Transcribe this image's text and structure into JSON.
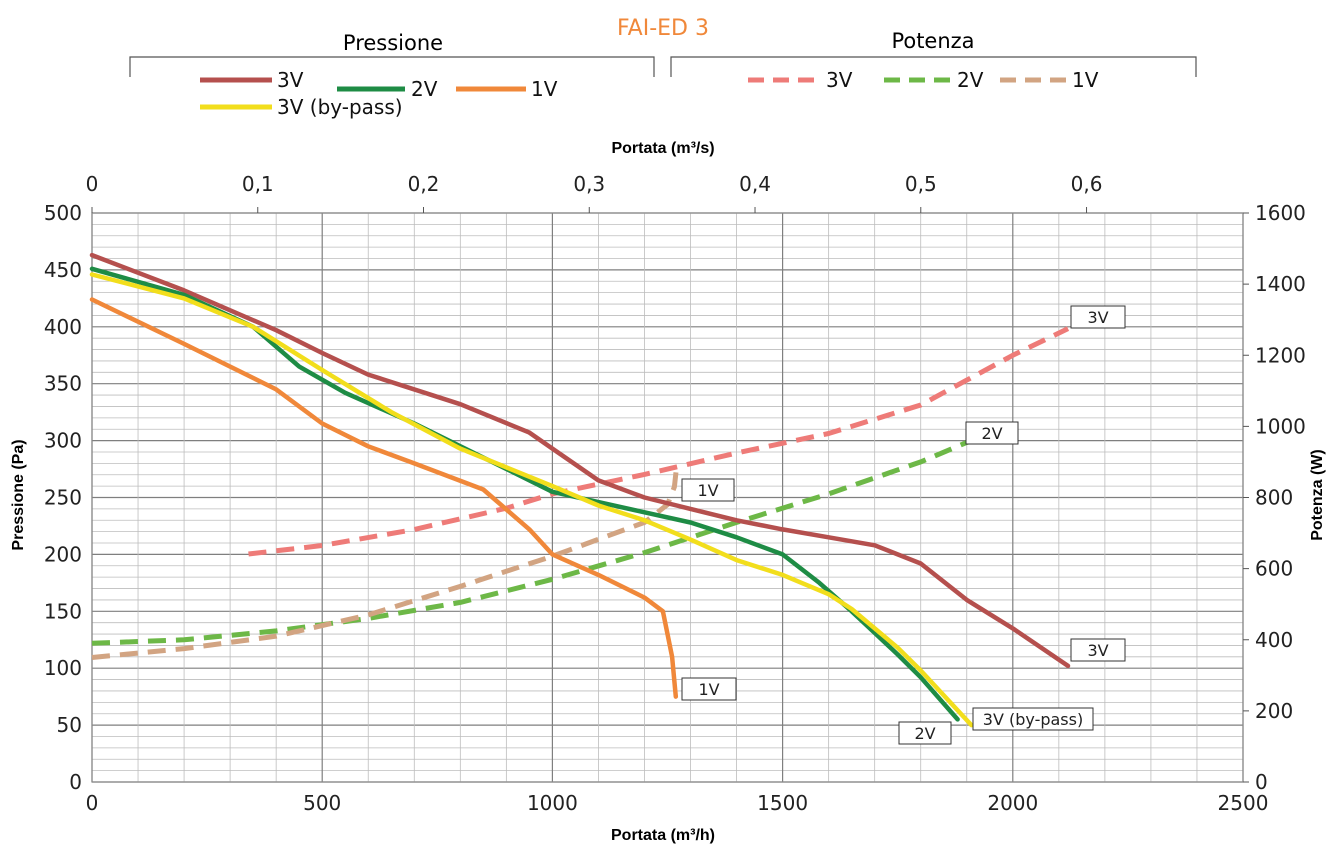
{
  "chart_data": {
    "type": "line",
    "title": "FAI-ED 3",
    "title_color": "#F0883A",
    "legend_groups": [
      "Pressione",
      "Potenza"
    ],
    "x_bottom": {
      "label": "Portata (m³/h)",
      "range": [
        0,
        2500
      ],
      "ticks": [
        "0",
        "500",
        "1000",
        "1500",
        "2000",
        "2500"
      ]
    },
    "x_top": {
      "label": "Portata (m³/s)",
      "range": [
        0,
        0.6944
      ],
      "ticks": [
        "0",
        "0,1",
        "0,2",
        "0,3",
        "0,4",
        "0,5",
        "0,6"
      ]
    },
    "y_left": {
      "label": "Pressione (Pa)",
      "range": [
        0,
        500
      ],
      "ticks": [
        "0",
        "50",
        "100",
        "150",
        "200",
        "250",
        "300",
        "350",
        "400",
        "450",
        "500"
      ]
    },
    "y_right": {
      "label": "Potenza (W)",
      "range": [
        0,
        1600
      ],
      "ticks": [
        "0",
        "200",
        "400",
        "600",
        "800",
        "1000",
        "1200",
        "1400",
        "1600"
      ]
    },
    "grid": true,
    "pressure_series": [
      {
        "name": "3V",
        "color": "#B5504E",
        "axis": "left",
        "points": [
          [
            0,
            463
          ],
          [
            200,
            432
          ],
          [
            400,
            397
          ],
          [
            500,
            377
          ],
          [
            600,
            358
          ],
          [
            800,
            332
          ],
          [
            950,
            307
          ],
          [
            1000,
            293
          ],
          [
            1100,
            265
          ],
          [
            1200,
            250
          ],
          [
            1300,
            240
          ],
          [
            1400,
            230
          ],
          [
            1500,
            222
          ],
          [
            1600,
            215
          ],
          [
            1700,
            208
          ],
          [
            1800,
            192
          ],
          [
            1900,
            160
          ],
          [
            2000,
            135
          ],
          [
            2120,
            102
          ]
        ]
      },
      {
        "name": "2V",
        "color": "#1E8C45",
        "axis": "left",
        "points": [
          [
            0,
            451
          ],
          [
            200,
            428
          ],
          [
            350,
            400
          ],
          [
            450,
            365
          ],
          [
            550,
            342
          ],
          [
            700,
            315
          ],
          [
            900,
            275
          ],
          [
            1000,
            255
          ],
          [
            1200,
            237
          ],
          [
            1300,
            228
          ],
          [
            1400,
            215
          ],
          [
            1500,
            200
          ],
          [
            1580,
            175
          ],
          [
            1650,
            150
          ],
          [
            1750,
            112
          ],
          [
            1800,
            92
          ],
          [
            1880,
            55
          ]
        ]
      },
      {
        "name": "1V",
        "color": "#F0883A",
        "axis": "left",
        "points": [
          [
            0,
            424
          ],
          [
            200,
            385
          ],
          [
            400,
            345
          ],
          [
            500,
            315
          ],
          [
            600,
            295
          ],
          [
            700,
            280
          ],
          [
            850,
            257
          ],
          [
            950,
            222
          ],
          [
            1000,
            200
          ],
          [
            1100,
            182
          ],
          [
            1200,
            162
          ],
          [
            1240,
            150
          ],
          [
            1260,
            110
          ],
          [
            1268,
            75
          ]
        ]
      },
      {
        "name": "3V (by-pass)",
        "color": "#F2DE1C",
        "axis": "left",
        "points": [
          [
            0,
            446
          ],
          [
            200,
            425
          ],
          [
            350,
            400
          ],
          [
            500,
            362
          ],
          [
            650,
            325
          ],
          [
            800,
            293
          ],
          [
            1000,
            260
          ],
          [
            1100,
            243
          ],
          [
            1200,
            230
          ],
          [
            1300,
            213
          ],
          [
            1400,
            195
          ],
          [
            1500,
            182
          ],
          [
            1600,
            165
          ],
          [
            1650,
            152
          ],
          [
            1750,
            118
          ],
          [
            1800,
            98
          ],
          [
            1910,
            50
          ]
        ]
      }
    ],
    "power_series": [
      {
        "name": "3V",
        "color": "#EE7B78",
        "axis": "right",
        "dash": true,
        "points": [
          [
            340,
            641
          ],
          [
            500,
            665
          ],
          [
            700,
            710
          ],
          [
            900,
            770
          ],
          [
            1000,
            810
          ],
          [
            1200,
            865
          ],
          [
            1400,
            925
          ],
          [
            1600,
            980
          ],
          [
            1800,
            1060
          ],
          [
            1900,
            1130
          ],
          [
            2000,
            1200
          ],
          [
            2120,
            1275
          ]
        ]
      },
      {
        "name": "2V",
        "color": "#6DB847",
        "axis": "right",
        "dash": true,
        "points": [
          [
            0,
            390
          ],
          [
            200,
            400
          ],
          [
            400,
            425
          ],
          [
            600,
            460
          ],
          [
            800,
            505
          ],
          [
            1000,
            570
          ],
          [
            1200,
            645
          ],
          [
            1400,
            730
          ],
          [
            1600,
            810
          ],
          [
            1800,
            900
          ],
          [
            1900,
            955
          ],
          [
            1990,
            985
          ]
        ]
      },
      {
        "name": "1V",
        "color": "#D2A482",
        "axis": "right",
        "dash": true,
        "points": [
          [
            0,
            350
          ],
          [
            200,
            375
          ],
          [
            400,
            410
          ],
          [
            600,
            470
          ],
          [
            800,
            550
          ],
          [
            1000,
            635
          ],
          [
            1200,
            730
          ],
          [
            1250,
            780
          ],
          [
            1265,
            830
          ],
          [
            1270,
            890
          ]
        ]
      }
    ],
    "data_labels": [
      {
        "text": "3V",
        "series": "Potenza 3V"
      },
      {
        "text": "2V",
        "series": "Potenza 2V"
      },
      {
        "text": "1V",
        "series": "Potenza 1V"
      },
      {
        "text": "3V",
        "series": "Pressione 3V"
      },
      {
        "text": "1V",
        "series": "Pressione 1V"
      },
      {
        "text": "2V",
        "series": "Pressione 2V"
      },
      {
        "text": "3V (by-pass)",
        "series": "Pressione 3V (by-pass)"
      }
    ]
  }
}
